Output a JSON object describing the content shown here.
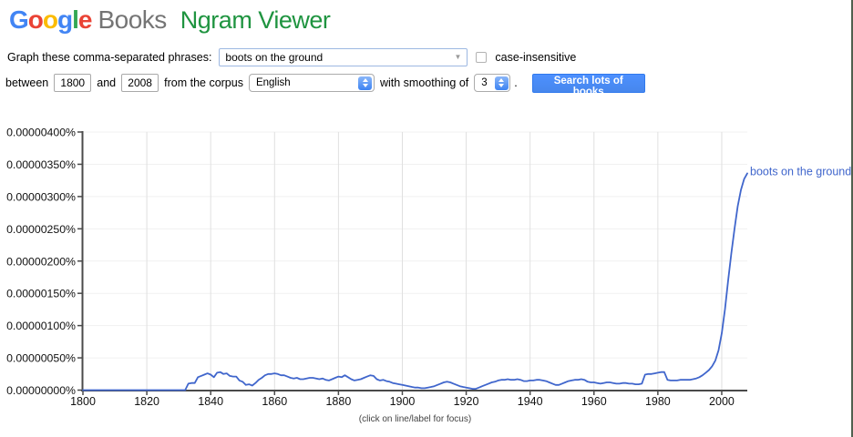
{
  "header": {
    "logo_text": "Google",
    "logo_letter_colors": [
      "#4285F4",
      "#EA4335",
      "#FBBC05",
      "#4285F4",
      "#34A853",
      "#EA4335"
    ],
    "books_wordmark": "Books",
    "product_name": "Ngram Viewer"
  },
  "form": {
    "phrases_label": "Graph these comma-separated phrases:",
    "phrases_value": "boots on the ground",
    "case_insensitive_label": "case-insensitive",
    "case_insensitive_checked": false,
    "between_label": "between",
    "year_start": "1800",
    "and_label": "and",
    "year_end": "2008",
    "corpus_label": "from the corpus",
    "corpus_value": "English",
    "smoothing_label": "with smoothing of",
    "smoothing_value": "3",
    "period": ".",
    "search_button_label": "Search lots of books"
  },
  "colors": {
    "series_blue": "#4066cc",
    "button_blue": "#4d90fe",
    "button_border": "#3079ed",
    "ngram_green": "#1f9440",
    "books_gray": "#757575",
    "axis_dark": "#4a4a4a",
    "v_grid": "#e0e0e0",
    "h_grid": "#f1f1f1"
  },
  "chart_data": {
    "type": "line",
    "title": "",
    "xlabel": "",
    "ylabel": "",
    "xlim": [
      1800,
      2008
    ],
    "ylim_unit": "1e-6 percent",
    "ylim": [
      0,
      4.0
    ],
    "grid": true,
    "legend_position": "end-of-line-label",
    "footnote": "(click on line/label for focus)",
    "y_ticks": [
      {
        "v": 0.0,
        "label": "0.00000000%"
      },
      {
        "v": 0.5,
        "label": "0.00000050%"
      },
      {
        "v": 1.0,
        "label": "0.00000100%"
      },
      {
        "v": 1.5,
        "label": "0.00000150%"
      },
      {
        "v": 2.0,
        "label": "0.00000200%"
      },
      {
        "v": 2.5,
        "label": "0.00000250%"
      },
      {
        "v": 3.0,
        "label": "0.00000300%"
      },
      {
        "v": 3.5,
        "label": "0.00000350%"
      },
      {
        "v": 4.0,
        "label": "0.00000400%"
      }
    ],
    "x_ticks": [
      {
        "v": 1800,
        "label": "1800"
      },
      {
        "v": 1820,
        "label": "1820"
      },
      {
        "v": 1840,
        "label": "1840"
      },
      {
        "v": 1860,
        "label": "1860"
      },
      {
        "v": 1880,
        "label": "1880"
      },
      {
        "v": 1900,
        "label": "1900"
      },
      {
        "v": 1920,
        "label": "1920"
      },
      {
        "v": 1940,
        "label": "1940"
      },
      {
        "v": 1960,
        "label": "1960"
      },
      {
        "v": 1980,
        "label": "1980"
      },
      {
        "v": 2000,
        "label": "2000"
      }
    ],
    "series": [
      {
        "name": "boots on the ground",
        "color": "#4066cc",
        "points_unit": "year, 1e-6 percent",
        "points": [
          [
            1800,
            0
          ],
          [
            1830,
            0
          ],
          [
            1832,
            0
          ],
          [
            1833,
            0.1
          ],
          [
            1834,
            0.11
          ],
          [
            1835,
            0.11
          ],
          [
            1836,
            0.2
          ],
          [
            1837,
            0.22
          ],
          [
            1838,
            0.24
          ],
          [
            1839,
            0.26
          ],
          [
            1840,
            0.24
          ],
          [
            1841,
            0.2
          ],
          [
            1842,
            0.27
          ],
          [
            1843,
            0.28
          ],
          [
            1844,
            0.25
          ],
          [
            1845,
            0.26
          ],
          [
            1846,
            0.22
          ],
          [
            1847,
            0.21
          ],
          [
            1848,
            0.21
          ],
          [
            1849,
            0.15
          ],
          [
            1850,
            0.13
          ],
          [
            1851,
            0.08
          ],
          [
            1852,
            0.09
          ],
          [
            1853,
            0.07
          ],
          [
            1854,
            0.11
          ],
          [
            1855,
            0.16
          ],
          [
            1856,
            0.19
          ],
          [
            1857,
            0.23
          ],
          [
            1858,
            0.25
          ],
          [
            1859,
            0.25
          ],
          [
            1860,
            0.26
          ],
          [
            1861,
            0.25
          ],
          [
            1862,
            0.23
          ],
          [
            1863,
            0.23
          ],
          [
            1864,
            0.21
          ],
          [
            1865,
            0.19
          ],
          [
            1866,
            0.18
          ],
          [
            1867,
            0.19
          ],
          [
            1868,
            0.17
          ],
          [
            1869,
            0.17
          ],
          [
            1870,
            0.18
          ],
          [
            1871,
            0.19
          ],
          [
            1872,
            0.19
          ],
          [
            1873,
            0.18
          ],
          [
            1874,
            0.17
          ],
          [
            1875,
            0.18
          ],
          [
            1876,
            0.16
          ],
          [
            1877,
            0.15
          ],
          [
            1878,
            0.17
          ],
          [
            1879,
            0.19
          ],
          [
            1880,
            0.21
          ],
          [
            1881,
            0.2
          ],
          [
            1882,
            0.23
          ],
          [
            1883,
            0.2
          ],
          [
            1884,
            0.17
          ],
          [
            1885,
            0.15
          ],
          [
            1886,
            0.16
          ],
          [
            1887,
            0.17
          ],
          [
            1888,
            0.19
          ],
          [
            1889,
            0.21
          ],
          [
            1890,
            0.23
          ],
          [
            1891,
            0.22
          ],
          [
            1892,
            0.17
          ],
          [
            1893,
            0.15
          ],
          [
            1894,
            0.16
          ],
          [
            1895,
            0.14
          ],
          [
            1896,
            0.13
          ],
          [
            1897,
            0.11
          ],
          [
            1898,
            0.1
          ],
          [
            1899,
            0.09
          ],
          [
            1900,
            0.08
          ],
          [
            1901,
            0.07
          ],
          [
            1902,
            0.06
          ],
          [
            1903,
            0.05
          ],
          [
            1904,
            0.04
          ],
          [
            1905,
            0.04
          ],
          [
            1906,
            0.03
          ],
          [
            1907,
            0.03
          ],
          [
            1908,
            0.04
          ],
          [
            1909,
            0.05
          ],
          [
            1910,
            0.06
          ],
          [
            1911,
            0.08
          ],
          [
            1912,
            0.1
          ],
          [
            1913,
            0.12
          ],
          [
            1914,
            0.13
          ],
          [
            1915,
            0.12
          ],
          [
            1916,
            0.1
          ],
          [
            1917,
            0.08
          ],
          [
            1918,
            0.06
          ],
          [
            1919,
            0.05
          ],
          [
            1920,
            0.04
          ],
          [
            1921,
            0.03
          ],
          [
            1922,
            0.02
          ],
          [
            1923,
            0.02
          ],
          [
            1924,
            0.04
          ],
          [
            1925,
            0.06
          ],
          [
            1926,
            0.08
          ],
          [
            1927,
            0.1
          ],
          [
            1928,
            0.12
          ],
          [
            1929,
            0.13
          ],
          [
            1930,
            0.15
          ],
          [
            1931,
            0.16
          ],
          [
            1932,
            0.16
          ],
          [
            1933,
            0.17
          ],
          [
            1934,
            0.16
          ],
          [
            1935,
            0.16
          ],
          [
            1936,
            0.17
          ],
          [
            1937,
            0.16
          ],
          [
            1938,
            0.14
          ],
          [
            1939,
            0.14
          ],
          [
            1940,
            0.15
          ],
          [
            1941,
            0.15
          ],
          [
            1942,
            0.16
          ],
          [
            1943,
            0.16
          ],
          [
            1944,
            0.15
          ],
          [
            1945,
            0.14
          ],
          [
            1946,
            0.12
          ],
          [
            1947,
            0.1
          ],
          [
            1948,
            0.08
          ],
          [
            1949,
            0.08
          ],
          [
            1950,
            0.1
          ],
          [
            1951,
            0.12
          ],
          [
            1952,
            0.14
          ],
          [
            1953,
            0.15
          ],
          [
            1954,
            0.16
          ],
          [
            1955,
            0.16
          ],
          [
            1956,
            0.17
          ],
          [
            1957,
            0.16
          ],
          [
            1958,
            0.13
          ],
          [
            1959,
            0.12
          ],
          [
            1960,
            0.12
          ],
          [
            1961,
            0.11
          ],
          [
            1962,
            0.1
          ],
          [
            1963,
            0.11
          ],
          [
            1964,
            0.12
          ],
          [
            1965,
            0.12
          ],
          [
            1966,
            0.11
          ],
          [
            1967,
            0.1
          ],
          [
            1968,
            0.1
          ],
          [
            1969,
            0.11
          ],
          [
            1970,
            0.11
          ],
          [
            1971,
            0.1
          ],
          [
            1972,
            0.1
          ],
          [
            1973,
            0.09
          ],
          [
            1974,
            0.09
          ],
          [
            1975,
            0.1
          ],
          [
            1976,
            0.24
          ],
          [
            1977,
            0.25
          ],
          [
            1978,
            0.25
          ],
          [
            1979,
            0.26
          ],
          [
            1980,
            0.27
          ],
          [
            1981,
            0.28
          ],
          [
            1982,
            0.28
          ],
          [
            1983,
            0.16
          ],
          [
            1984,
            0.15
          ],
          [
            1985,
            0.15
          ],
          [
            1986,
            0.15
          ],
          [
            1987,
            0.16
          ],
          [
            1988,
            0.16
          ],
          [
            1989,
            0.16
          ],
          [
            1990,
            0.16
          ],
          [
            1991,
            0.17
          ],
          [
            1992,
            0.18
          ],
          [
            1993,
            0.2
          ],
          [
            1994,
            0.23
          ],
          [
            1995,
            0.27
          ],
          [
            1996,
            0.31
          ],
          [
            1997,
            0.37
          ],
          [
            1998,
            0.46
          ],
          [
            1999,
            0.62
          ],
          [
            2000,
            0.88
          ],
          [
            2001,
            1.25
          ],
          [
            2002,
            1.7
          ],
          [
            2003,
            2.12
          ],
          [
            2004,
            2.5
          ],
          [
            2005,
            2.85
          ],
          [
            2006,
            3.1
          ],
          [
            2007,
            3.27
          ],
          [
            2008,
            3.36
          ]
        ]
      }
    ]
  }
}
